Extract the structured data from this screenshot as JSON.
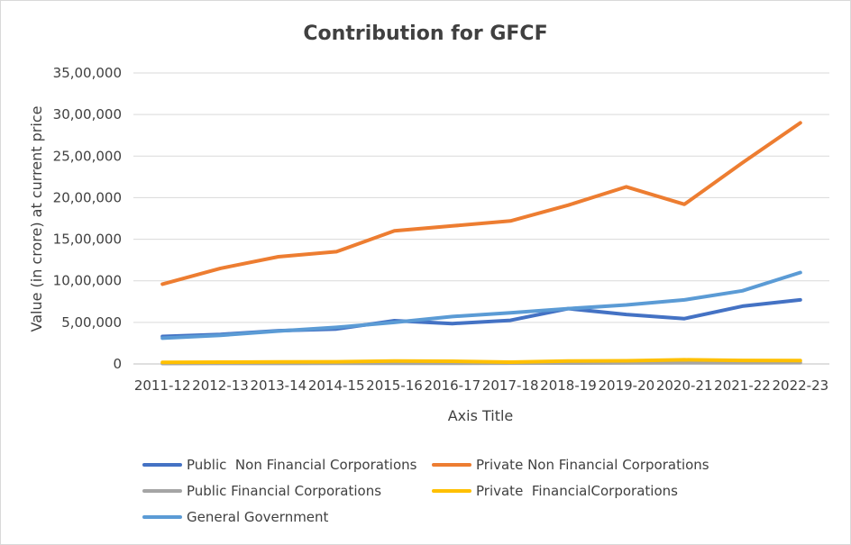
{
  "chart_data": {
    "type": "line",
    "title": "Contribution for GFCF",
    "xlabel": "Axis Title",
    "ylabel": "Value (in crore) at current price",
    "categories": [
      "2011-12",
      "2012-13",
      "2013-14",
      "2014-15",
      "2015-16",
      "2016-17",
      "2017-18",
      "2018-19",
      "2019-20",
      "2020-21",
      "2021-22",
      "2022-23"
    ],
    "ylim": [
      0,
      3500000
    ],
    "yticks": [
      {
        "value": 0,
        "label": "0"
      },
      {
        "value": 500000,
        "label": "5,00,000"
      },
      {
        "value": 1000000,
        "label": "10,00,000"
      },
      {
        "value": 1500000,
        "label": "15,00,000"
      },
      {
        "value": 2000000,
        "label": "20,00,000"
      },
      {
        "value": 2500000,
        "label": "25,00,000"
      },
      {
        "value": 3000000,
        "label": "30,00,000"
      },
      {
        "value": 3500000,
        "label": "35,00,000"
      }
    ],
    "grid": true,
    "legend_position": "bottom",
    "series": [
      {
        "name": "Public  Non Financial Corporations",
        "color": "#4472c4",
        "values": [
          330000,
          355000,
          400000,
          420000,
          520000,
          485000,
          525000,
          665000,
          595000,
          545000,
          695000,
          770000
        ]
      },
      {
        "name": "Private Non Financial Corporations",
        "color": "#ed7d31",
        "values": [
          960000,
          1150000,
          1290000,
          1350000,
          1600000,
          1660000,
          1720000,
          1910000,
          2130000,
          1920000,
          2420000,
          2900000
        ]
      },
      {
        "name": "Public Financial Corporations",
        "color": "#a5a5a5",
        "values": [
          5000,
          6000,
          7000,
          8000,
          9000,
          9000,
          10000,
          11000,
          12000,
          13000,
          14000,
          15000
        ]
      },
      {
        "name": "Private  FinancialCorporations",
        "color": "#ffc000",
        "values": [
          20000,
          22000,
          24000,
          26000,
          35000,
          32000,
          22000,
          35000,
          38000,
          50000,
          42000,
          40000
        ]
      },
      {
        "name": "General Government",
        "color": "#5b9bd5",
        "values": [
          310000,
          345000,
          395000,
          440000,
          500000,
          570000,
          615000,
          665000,
          710000,
          770000,
          880000,
          1100000
        ]
      }
    ]
  }
}
